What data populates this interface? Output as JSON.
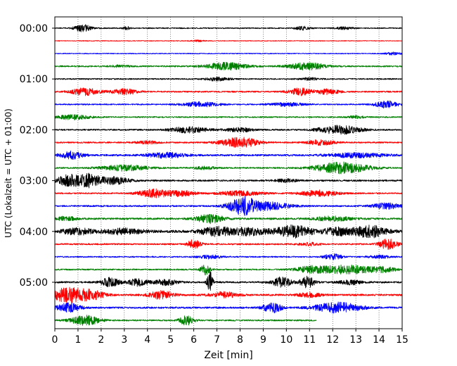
{
  "chart_data": {
    "type": "line",
    "title": "",
    "xlabel": "Zeit  [min]",
    "ylabel": "UTC (Lokalzeit = UTC + 01:00)",
    "xlim": [
      0,
      15
    ],
    "x_ticks": [
      0,
      1,
      2,
      3,
      4,
      5,
      6,
      7,
      8,
      9,
      10,
      11,
      12,
      13,
      14,
      15
    ],
    "y_tick_labels": [
      "00:00",
      "01:00",
      "02:00",
      "03:00",
      "04:00",
      "05:00"
    ],
    "grid": "vertical dotted",
    "legend": "none",
    "trace_interval_min": 15,
    "last_trace_end_min": 11.3,
    "trace_colors": [
      "#000000",
      "#ff0000",
      "#0000ff",
      "#008000"
    ],
    "series": [
      {
        "start": "00:00",
        "color": "#000000",
        "noise": 0.8,
        "events": [
          {
            "t": 1.2,
            "amp": 5,
            "dur": 0.35
          },
          {
            "t": 3.1,
            "amp": 2.2,
            "dur": 0.15
          },
          {
            "t": 10.7,
            "amp": 2.6,
            "dur": 0.3
          },
          {
            "t": 12.5,
            "amp": 1.6,
            "dur": 0.4
          }
        ]
      },
      {
        "start": "00:15",
        "color": "#ff0000",
        "noise": 0.5,
        "events": [
          {
            "t": 6.2,
            "amp": 1.1,
            "dur": 0.3
          }
        ]
      },
      {
        "start": "00:30",
        "color": "#0000ff",
        "noise": 0.6,
        "events": [
          {
            "t": 14.6,
            "amp": 1.8,
            "dur": 0.35
          }
        ]
      },
      {
        "start": "00:45",
        "color": "#008000",
        "noise": 1.0,
        "events": [
          {
            "t": 7.4,
            "amp": 5,
            "dur": 0.9
          },
          {
            "t": 10.9,
            "amp": 5,
            "dur": 0.8
          },
          {
            "t": 2.8,
            "amp": 1.4,
            "dur": 0.4
          }
        ]
      },
      {
        "start": "01:00",
        "color": "#000000",
        "noise": 0.9,
        "events": [
          {
            "t": 7.0,
            "amp": 2.5,
            "dur": 0.5
          },
          {
            "t": 11.0,
            "amp": 1.8,
            "dur": 0.4
          }
        ]
      },
      {
        "start": "01:15",
        "color": "#ff0000",
        "noise": 1.0,
        "events": [
          {
            "t": 1.3,
            "amp": 5,
            "dur": 0.6
          },
          {
            "t": 3.0,
            "amp": 4,
            "dur": 0.6
          },
          {
            "t": 10.6,
            "amp": 5,
            "dur": 0.5
          },
          {
            "t": 11.8,
            "amp": 3.5,
            "dur": 0.5
          }
        ]
      },
      {
        "start": "01:30",
        "color": "#0000ff",
        "noise": 0.9,
        "events": [
          {
            "t": 6.3,
            "amp": 3.2,
            "dur": 0.8
          },
          {
            "t": 10.0,
            "amp": 2.5,
            "dur": 0.7
          },
          {
            "t": 14.3,
            "amp": 5,
            "dur": 0.5
          }
        ]
      },
      {
        "start": "01:45",
        "color": "#008000",
        "noise": 0.9,
        "events": [
          {
            "t": 0.8,
            "amp": 3.5,
            "dur": 0.7
          },
          {
            "t": 13.0,
            "amp": 1.5,
            "dur": 0.4
          }
        ]
      },
      {
        "start": "02:00",
        "color": "#000000",
        "noise": 1.0,
        "events": [
          {
            "t": 5.8,
            "amp": 4,
            "dur": 0.8
          },
          {
            "t": 8.0,
            "amp": 3,
            "dur": 0.6
          },
          {
            "t": 12.3,
            "amp": 6,
            "dur": 0.9
          }
        ]
      },
      {
        "start": "02:15",
        "color": "#ff0000",
        "noise": 1.0,
        "events": [
          {
            "t": 8.0,
            "amp": 7,
            "dur": 0.8
          },
          {
            "t": 11.5,
            "amp": 3.5,
            "dur": 0.6
          },
          {
            "t": 4.0,
            "amp": 2,
            "dur": 0.5
          }
        ]
      },
      {
        "start": "02:30",
        "color": "#0000ff",
        "noise": 1.3,
        "events": [
          {
            "t": 0.7,
            "amp": 5,
            "dur": 0.5
          },
          {
            "t": 4.8,
            "amp": 3.5,
            "dur": 0.8
          },
          {
            "t": 13.0,
            "amp": 3,
            "dur": 1.2
          }
        ]
      },
      {
        "start": "02:45",
        "color": "#008000",
        "noise": 1.0,
        "events": [
          {
            "t": 3.0,
            "amp": 4,
            "dur": 1.0
          },
          {
            "t": 12.4,
            "amp": 8,
            "dur": 1.1
          },
          {
            "t": 6.5,
            "amp": 2,
            "dur": 0.5
          }
        ]
      },
      {
        "start": "03:00",
        "color": "#000000",
        "noise": 1.2,
        "events": [
          {
            "t": 0.6,
            "amp": 8,
            "dur": 0.5
          },
          {
            "t": 1.5,
            "amp": 9,
            "dur": 0.5
          },
          {
            "t": 2.6,
            "amp": 5,
            "dur": 0.6
          },
          {
            "t": 10.0,
            "amp": 2,
            "dur": 0.5
          }
        ]
      },
      {
        "start": "03:15",
        "color": "#ff0000",
        "noise": 1.0,
        "events": [
          {
            "t": 4.3,
            "amp": 5.5,
            "dur": 0.7
          },
          {
            "t": 5.5,
            "amp": 3.5,
            "dur": 0.6
          },
          {
            "t": 8.0,
            "amp": 3,
            "dur": 1.0
          },
          {
            "t": 11.4,
            "amp": 4,
            "dur": 0.8
          }
        ]
      },
      {
        "start": "03:30",
        "color": "#0000ff",
        "noise": 1.1,
        "events": [
          {
            "t": 8.1,
            "amp": 12,
            "dur": 0.6
          },
          {
            "t": 9.3,
            "amp": 5,
            "dur": 0.9
          },
          {
            "t": 14.3,
            "amp": 4,
            "dur": 0.6
          }
        ]
      },
      {
        "start": "03:45",
        "color": "#008000",
        "noise": 1.3,
        "events": [
          {
            "t": 0.5,
            "amp": 3,
            "dur": 0.4
          },
          {
            "t": 6.7,
            "amp": 6,
            "dur": 0.6
          },
          {
            "t": 12.0,
            "amp": 3,
            "dur": 0.8
          }
        ]
      },
      {
        "start": "04:00",
        "color": "#000000",
        "noise": 1.8,
        "events": [
          {
            "t": 1.0,
            "amp": 4,
            "dur": 0.7
          },
          {
            "t": 3.0,
            "amp": 4,
            "dur": 0.8
          },
          {
            "t": 7.0,
            "amp": 6,
            "dur": 0.7
          },
          {
            "t": 8.4,
            "amp": 5,
            "dur": 0.7
          },
          {
            "t": 10.3,
            "amp": 8,
            "dur": 0.8
          },
          {
            "t": 12.2,
            "amp": 5,
            "dur": 0.6
          },
          {
            "t": 13.6,
            "amp": 8,
            "dur": 0.7
          }
        ]
      },
      {
        "start": "04:15",
        "color": "#ff0000",
        "noise": 1.1,
        "events": [
          {
            "t": 6.0,
            "amp": 6,
            "dur": 0.3
          },
          {
            "t": 11.0,
            "amp": 2,
            "dur": 0.4
          },
          {
            "t": 14.4,
            "amp": 7,
            "dur": 0.4
          }
        ]
      },
      {
        "start": "04:30",
        "color": "#0000ff",
        "noise": 0.9,
        "events": [
          {
            "t": 6.7,
            "amp": 2.5,
            "dur": 0.5
          },
          {
            "t": 12.0,
            "amp": 4,
            "dur": 0.4
          },
          {
            "t": 14.0,
            "amp": 2,
            "dur": 0.5
          }
        ]
      },
      {
        "start": "04:45",
        "color": "#008000",
        "noise": 1.0,
        "events": [
          {
            "t": 6.5,
            "amp": 7,
            "dur": 0.2
          },
          {
            "t": 11.0,
            "amp": 4,
            "dur": 0.6
          },
          {
            "t": 12.6,
            "amp": 6,
            "dur": 1.2
          },
          {
            "t": 14.2,
            "amp": 3,
            "dur": 0.5
          }
        ]
      },
      {
        "start": "05:00",
        "color": "#000000",
        "noise": 1.2,
        "events": [
          {
            "t": 2.4,
            "amp": 6,
            "dur": 0.4
          },
          {
            "t": 3.6,
            "amp": 5,
            "dur": 0.4
          },
          {
            "t": 4.8,
            "amp": 4,
            "dur": 0.5
          },
          {
            "t": 6.7,
            "amp": 16,
            "dur": 0.12
          },
          {
            "t": 9.8,
            "amp": 7,
            "dur": 0.4
          },
          {
            "t": 10.9,
            "amp": 8,
            "dur": 0.3
          },
          {
            "t": 12.8,
            "amp": 3,
            "dur": 0.5
          }
        ]
      },
      {
        "start": "05:15",
        "color": "#ff0000",
        "noise": 1.3,
        "events": [
          {
            "t": 0.5,
            "amp": 10,
            "dur": 0.6
          },
          {
            "t": 1.5,
            "amp": 7,
            "dur": 0.6
          },
          {
            "t": 4.6,
            "amp": 6,
            "dur": 0.5
          },
          {
            "t": 7.3,
            "amp": 4,
            "dur": 0.6
          },
          {
            "t": 11.0,
            "amp": 3,
            "dur": 0.5
          }
        ]
      },
      {
        "start": "05:30",
        "color": "#0000ff",
        "noise": 1.2,
        "events": [
          {
            "t": 0.6,
            "amp": 6,
            "dur": 0.5
          },
          {
            "t": 9.4,
            "amp": 7,
            "dur": 0.4
          },
          {
            "t": 12.2,
            "amp": 7,
            "dur": 1.0
          }
        ]
      },
      {
        "start": "05:45",
        "color": "#008000",
        "noise": 1.0,
        "events": [
          {
            "t": 1.3,
            "amp": 7,
            "dur": 0.6
          },
          {
            "t": 5.7,
            "amp": 7,
            "dur": 0.3
          }
        ]
      }
    ]
  }
}
